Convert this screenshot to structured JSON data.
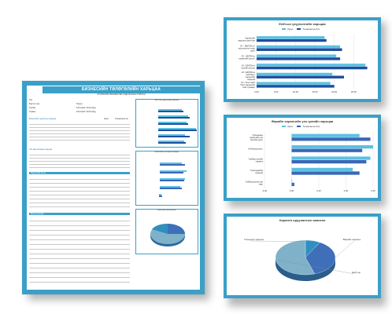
{
  "main_report": {
    "title": "БИЗНЕСИЙН ТӨЛӨГӨЛИЙН ХАРЬЦАА",
    "subtitle": "ХУУЛЬЧИЙН БИЗНЕСТЕЙ СУДАЛГААНЫ ТАЙЛАН",
    "info_labels": [
      "Нэр",
      "Бүртгэл нэр",
      "Салбар",
      "Хэмжээ"
    ],
    "info_values": [
      "",
      "Нэгдэл",
      "Information Technology",
      "Information Technology"
    ],
    "section1_header": "Бизнесийн сууриллын харьцаа",
    "section1_cols": [
      "Одоо",
      "Төлөвлөгөө бүх"
    ],
    "section2_header": "Үйл ажиллагааны харьцаа",
    "section3_header": "Эрсдэлийн бүтэц",
    "section4_header": "Бусад харьцаа",
    "mini_chart_1_title": "ROP-ын үзүүлэлтийн харьцаа",
    "mini_chart_2_title": "Бизнесийн тогтвортой байдал",
    "mini_chart_3_title": "Хөрөнгийн хуваарилалт"
  },
  "chart_data": [
    {
      "type": "bar",
      "orientation": "horizontal",
      "title": "ЕАН-ын үзүүлэлтийн харьцаа",
      "categories": [
        "Хөрөнгийн зардлын дүнгэлээ",
        "ЕҮ - EBITDA-н / ашиглалтын хоёр дахь",
        "ЕҮ - EBITDA-н хөрөнгийн эргэлт",
        "ЕҮ / EBITDA-н кэшийн урсгал",
        "ЕҮ / EBITDA-н нийлбэр / хөрөнгийн харьцаа",
        "ЕҮ / Free Cash Flow хөрөнгийн хоёр хуваарь"
      ],
      "series": [
        {
          "name": "Одоо",
          "values": [
            17.5,
            21.5,
            20.5,
            28.0,
            19.5,
            19.0
          ]
        },
        {
          "name": "Төлөвлөгөө бүх",
          "values": [
            18.0,
            22.0,
            21.5,
            28.5,
            22.5,
            20.0
          ]
        }
      ],
      "xlim": [
        0,
        30
      ],
      "xticks": [
        "0.00",
        "5.00",
        "10.00",
        "15.00",
        "20.00",
        "25.00"
      ],
      "colors": [
        "#5bc1e2",
        "#1f4e9e"
      ],
      "legend": "top"
    },
    {
      "type": "bar",
      "orientation": "horizontal",
      "title": "Өөрийн хөрөнгийн үнэ цэнийн харьцаа",
      "categories": [
        "Хувьцааны хөрөнгийн зах зээлийн ашиг",
        "Үнэ/борлуулалт",
        "Үнэ/Бүртгэлийн хөрөнгө",
        "Үнэ/өгөөжийн харьцаа",
        "Үнэ/Борлуулалтын хувь"
      ],
      "series": [
        {
          "name": "Одоо",
          "values": [
            0.5,
            0.6,
            0.58,
            0.45,
            0.0
          ]
        },
        {
          "name": "Төлөвлөгөө бүх",
          "values": [
            0.58,
            0.52,
            0.55,
            0.5,
            0.02
          ]
        }
      ],
      "xlim": [
        -0.2,
        0.6
      ],
      "xticks": [
        "-0.20",
        "0.00",
        "0.20",
        "0.40",
        "0.60"
      ],
      "colors": [
        "#5bc1e2",
        "#3a67b5"
      ],
      "legend": "top"
    },
    {
      "type": "pie",
      "title": "Хөрөнгө оруулалтын капитал",
      "labels": [
        "Төлөөлөх хөрөнгө",
        "Өөрийн хөрөнгө",
        "Нийт өр"
      ],
      "values": [
        8,
        37,
        55
      ],
      "colors": [
        "#2f8fbf",
        "#3e6fb8",
        "#7fb2c9"
      ]
    }
  ]
}
